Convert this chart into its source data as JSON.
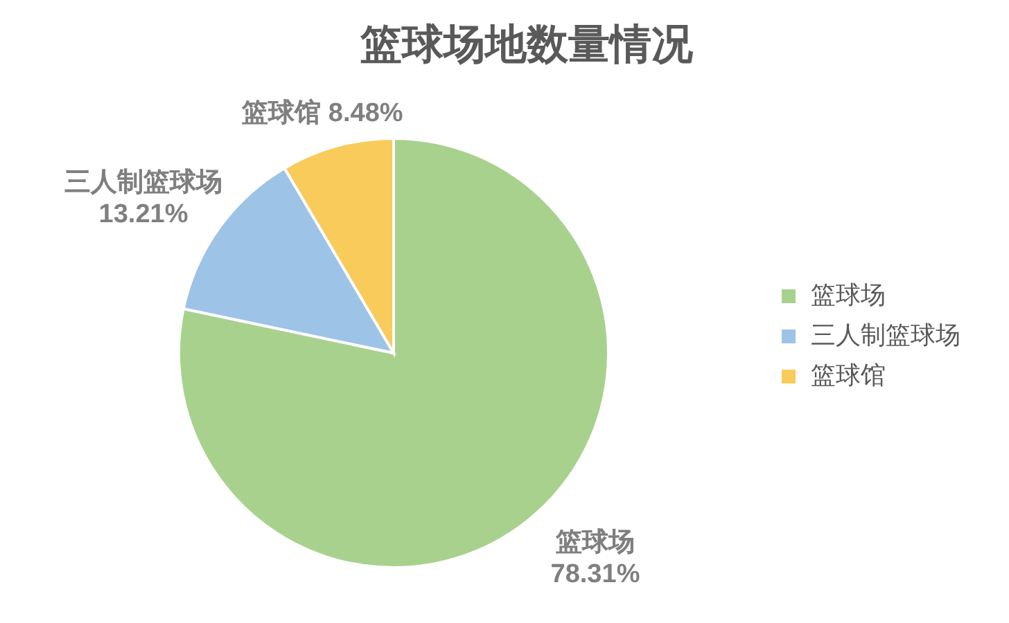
{
  "chart_data": {
    "type": "pie",
    "title": "篮球场地数量情况",
    "categories": [
      "篮球场",
      "三人制篮球场",
      "篮球馆"
    ],
    "values": [
      78.31,
      13.21,
      8.48
    ],
    "colors": [
      "#a9d18e",
      "#9dc3e6",
      "#f8cb5b"
    ],
    "value_labels": [
      "78.31%",
      "13.21%",
      "8.48%"
    ],
    "legend": "right"
  }
}
